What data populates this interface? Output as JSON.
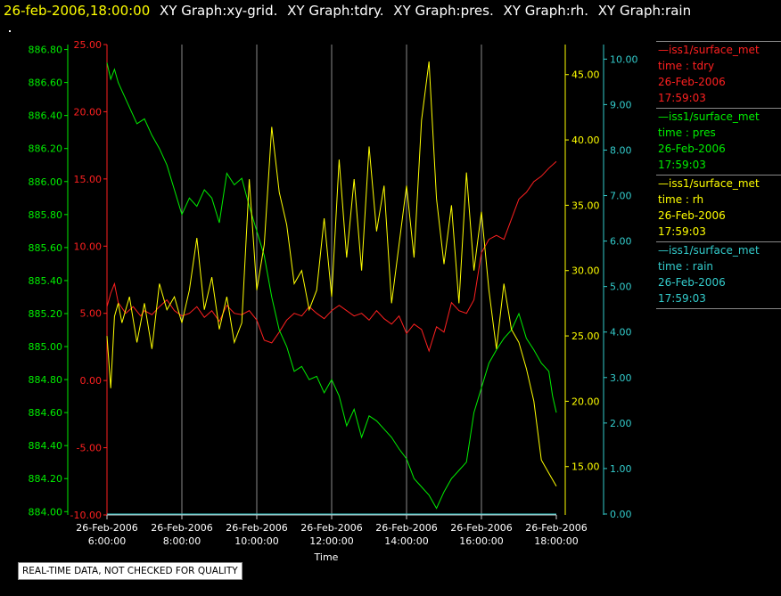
{
  "header": {
    "timestamp": "26-feb-2006,18:00:00",
    "tabs": [
      "XY Graph:xy-grid.",
      "XY Graph:tdry.",
      "XY Graph:pres.",
      "XY Graph:rh.",
      "XY Graph:rain"
    ]
  },
  "notice": "REAL-TIME DATA, NOT CHECKED FOR QUALITY",
  "legend": [
    {
      "source": "—iss1/surface_met",
      "var": "time : tdry",
      "date": "26-Feb-2006",
      "time": "17:59:03",
      "color": "#ff2020"
    },
    {
      "source": "—iss1/surface_met",
      "var": "time : pres",
      "date": "26-Feb-2006",
      "time": "17:59:03",
      "color": "#00ee00"
    },
    {
      "source": "—iss1/surface_met",
      "var": "time : rh",
      "date": "26-Feb-2006",
      "time": "17:59:03",
      "color": "#ffff00"
    },
    {
      "source": "—iss1/surface_met",
      "var": "time : rain",
      "date": "26-Feb-2006",
      "time": "17:59:03",
      "color": "#33cccc"
    }
  ],
  "chart_data": {
    "type": "line",
    "xlabel": "Time",
    "xlim": [
      6,
      18
    ],
    "x_ticks": [
      {
        "value": 6,
        "date": "26-Feb-2006",
        "time": "6:00:00"
      },
      {
        "value": 8,
        "date": "26-Feb-2006",
        "time": "8:00:00"
      },
      {
        "value": 10,
        "date": "26-Feb-2006",
        "time": "10:00:00"
      },
      {
        "value": 12,
        "date": "26-Feb-2006",
        "time": "12:00:00"
      },
      {
        "value": 14,
        "date": "26-Feb-2006",
        "time": "14:00:00"
      },
      {
        "value": 16,
        "date": "26-Feb-2006",
        "time": "16:00:00"
      },
      {
        "value": 18,
        "date": "26-Feb-2006",
        "time": "18:00:00"
      }
    ],
    "grid": "vertical",
    "axes": [
      {
        "id": "pres",
        "color": "#00ee00",
        "ylim": [
          883.98,
          886.83
        ],
        "ticks": [
          "884.00",
          "884.20",
          "884.40",
          "884.60",
          "884.80",
          "885.00",
          "885.20",
          "885.40",
          "885.60",
          "885.80",
          "886.00",
          "886.20",
          "886.40",
          "886.60",
          "886.80"
        ],
        "tick_values": [
          884.0,
          884.2,
          884.4,
          884.6,
          884.8,
          885.0,
          885.2,
          885.4,
          885.6,
          885.8,
          886.0,
          886.2,
          886.4,
          886.6,
          886.8
        ]
      },
      {
        "id": "tdry",
        "color": "#ff2020",
        "ylim": [
          -10,
          25
        ],
        "ticks": [
          "-10.00",
          "-5.00",
          "0.00",
          "5.00",
          "10.00",
          "15.00",
          "20.00",
          "25.00"
        ],
        "tick_values": [
          -10,
          -5,
          0,
          5,
          10,
          15,
          20,
          25
        ]
      },
      {
        "id": "rh",
        "color": "#ffff00",
        "ylim": [
          11.3,
          47.3
        ],
        "ticks": [
          "15.00",
          "20.00",
          "25.00",
          "30.00",
          "35.00",
          "40.00",
          "45.00"
        ],
        "tick_values": [
          15,
          20,
          25,
          30,
          35,
          40,
          45
        ]
      },
      {
        "id": "rain",
        "color": "#33cccc",
        "ylim": [
          -0.02,
          10.32
        ],
        "ticks": [
          "0.00",
          "1.00",
          "2.00",
          "3.00",
          "4.00",
          "5.00",
          "6.00",
          "7.00",
          "8.00",
          "9.00",
          "10.00"
        ],
        "tick_values": [
          0,
          1,
          2,
          3,
          4,
          5,
          6,
          7,
          8,
          9,
          10
        ]
      }
    ],
    "series": [
      {
        "id": "tdry",
        "axis": "tdry",
        "color": "#ff2020",
        "x": [
          6.0,
          6.1,
          6.2,
          6.3,
          6.5,
          6.7,
          6.9,
          7.0,
          7.2,
          7.4,
          7.6,
          7.8,
          8.0,
          8.2,
          8.4,
          8.6,
          8.8,
          9.0,
          9.2,
          9.4,
          9.6,
          9.8,
          10.0,
          10.2,
          10.4,
          10.6,
          10.8,
          11.0,
          11.2,
          11.4,
          11.6,
          11.8,
          12.0,
          12.2,
          12.4,
          12.6,
          12.8,
          13.0,
          13.2,
          13.4,
          13.6,
          13.8,
          14.0,
          14.2,
          14.4,
          14.6,
          14.8,
          15.0,
          15.2,
          15.4,
          15.6,
          15.8,
          16.0,
          16.2,
          16.4,
          16.6,
          16.8,
          17.0,
          17.2,
          17.4,
          17.6,
          17.8,
          18.0
        ],
        "y": [
          5.5,
          6.5,
          7.2,
          5.8,
          5.0,
          5.5,
          4.8,
          5.2,
          4.9,
          5.5,
          6.0,
          5.2,
          4.8,
          5.0,
          5.5,
          4.7,
          5.2,
          4.4,
          5.6,
          5.0,
          4.9,
          5.2,
          4.5,
          3.0,
          2.8,
          3.6,
          4.5,
          5.0,
          4.8,
          5.5,
          5.0,
          4.6,
          5.2,
          5.6,
          5.2,
          4.8,
          5.0,
          4.5,
          5.2,
          4.6,
          4.2,
          4.8,
          3.5,
          4.2,
          3.8,
          2.2,
          4.0,
          3.6,
          5.8,
          5.2,
          5.0,
          6.0,
          9.5,
          10.5,
          10.8,
          10.5,
          12.0,
          13.5,
          14.0,
          14.8,
          15.2,
          15.8,
          16.3
        ]
      },
      {
        "id": "pres",
        "axis": "pres",
        "color": "#00ee00",
        "x": [
          6.0,
          6.1,
          6.2,
          6.3,
          6.4,
          6.6,
          6.8,
          7.0,
          7.2,
          7.4,
          7.6,
          7.8,
          8.0,
          8.2,
          8.4,
          8.6,
          8.8,
          9.0,
          9.2,
          9.4,
          9.6,
          9.8,
          10.0,
          10.2,
          10.4,
          10.6,
          10.8,
          11.0,
          11.2,
          11.4,
          11.6,
          11.8,
          12.0,
          12.2,
          12.4,
          12.6,
          12.8,
          13.0,
          13.2,
          13.4,
          13.6,
          13.8,
          14.0,
          14.2,
          14.4,
          14.6,
          14.8,
          15.0,
          15.2,
          15.4,
          15.6,
          15.8,
          16.0,
          16.2,
          16.4,
          16.6,
          16.8,
          17.0,
          17.2,
          17.4,
          17.6,
          17.8,
          17.9,
          18.0
        ],
        "y": [
          886.72,
          886.62,
          886.68,
          886.6,
          886.55,
          886.45,
          886.35,
          886.38,
          886.28,
          886.2,
          886.1,
          885.95,
          885.8,
          885.9,
          885.85,
          885.95,
          885.9,
          885.75,
          886.05,
          885.98,
          886.02,
          885.85,
          885.7,
          885.55,
          885.3,
          885.1,
          885.0,
          884.85,
          884.88,
          884.8,
          884.82,
          884.72,
          884.8,
          884.7,
          884.52,
          884.62,
          884.45,
          884.58,
          884.55,
          884.5,
          884.45,
          884.38,
          884.32,
          884.2,
          884.15,
          884.1,
          884.02,
          884.12,
          884.2,
          884.25,
          884.3,
          884.6,
          884.75,
          884.9,
          884.98,
          885.05,
          885.1,
          885.2,
          885.05,
          884.98,
          884.9,
          884.85,
          884.7,
          884.6
        ]
      },
      {
        "id": "rh",
        "axis": "rh",
        "color": "#ffff00",
        "x": [
          6.0,
          6.1,
          6.2,
          6.3,
          6.4,
          6.6,
          6.8,
          7.0,
          7.2,
          7.4,
          7.6,
          7.8,
          8.0,
          8.2,
          8.4,
          8.6,
          8.8,
          9.0,
          9.2,
          9.4,
          9.6,
          9.8,
          10.0,
          10.2,
          10.4,
          10.6,
          10.8,
          11.0,
          11.2,
          11.4,
          11.6,
          11.8,
          12.0,
          12.2,
          12.4,
          12.6,
          12.8,
          13.0,
          13.2,
          13.4,
          13.6,
          13.8,
          14.0,
          14.2,
          14.4,
          14.6,
          14.8,
          15.0,
          15.2,
          15.4,
          15.6,
          15.8,
          16.0,
          16.2,
          16.4,
          16.6,
          16.8,
          17.0,
          17.2,
          17.4,
          17.6,
          17.8,
          18.0
        ],
        "y": [
          25.0,
          21.0,
          26.5,
          27.5,
          26.0,
          28.0,
          24.5,
          27.5,
          24.0,
          29.0,
          27.0,
          28.0,
          26.0,
          28.5,
          32.5,
          27.0,
          29.5,
          25.5,
          28.0,
          24.5,
          26.0,
          37.0,
          28.5,
          32.0,
          41.0,
          36.0,
          33.5,
          29.0,
          30.0,
          27.0,
          28.5,
          34.0,
          28.0,
          38.5,
          31.0,
          37.0,
          30.0,
          39.5,
          33.0,
          36.5,
          27.5,
          32.0,
          36.5,
          31.0,
          41.5,
          46.0,
          35.5,
          30.5,
          35.0,
          27.5,
          37.5,
          30.0,
          34.5,
          28.5,
          24.0,
          29.0,
          25.5,
          24.5,
          22.5,
          20.0,
          15.5,
          14.5,
          13.5
        ]
      },
      {
        "id": "rain",
        "axis": "rain",
        "color": "#33cccc",
        "x": [
          6,
          18
        ],
        "y": [
          0,
          0
        ]
      }
    ]
  }
}
